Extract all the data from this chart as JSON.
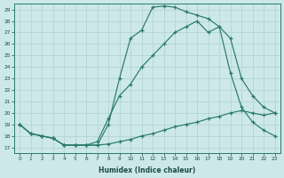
{
  "xlabel": "Humidex (Indice chaleur)",
  "bg_color": "#cce8e8",
  "line_color": "#2a7a6a",
  "grid_color": "#b0d0d0",
  "xlim": [
    -0.5,
    23.5
  ],
  "ylim": [
    16.5,
    29.5
  ],
  "xticks": [
    0,
    1,
    2,
    3,
    4,
    5,
    6,
    7,
    8,
    9,
    10,
    11,
    12,
    13,
    14,
    15,
    16,
    17,
    18,
    19,
    20,
    21,
    22,
    23
  ],
  "yticks": [
    17,
    18,
    19,
    20,
    21,
    22,
    23,
    24,
    25,
    26,
    27,
    28,
    29
  ],
  "c1x": [
    0,
    1,
    2,
    3,
    4,
    5,
    6,
    7,
    8,
    9,
    10,
    11,
    12,
    13,
    14,
    15,
    16,
    17,
    18,
    19,
    20,
    21,
    22,
    23
  ],
  "c1y": [
    19,
    18.2,
    18.0,
    17.8,
    17.2,
    17.2,
    17.2,
    17.2,
    17.3,
    17.5,
    17.7,
    18.0,
    18.2,
    18.5,
    18.8,
    19.0,
    19.2,
    19.5,
    19.7,
    20.0,
    20.2,
    20.0,
    19.8,
    20.0
  ],
  "c2x": [
    0,
    1,
    2,
    3,
    4,
    5,
    6,
    7,
    8,
    9,
    10,
    11,
    12,
    13,
    14,
    15,
    16,
    17,
    18,
    19,
    20,
    21,
    22,
    23
  ],
  "c2y": [
    19,
    18.2,
    18.0,
    17.8,
    17.2,
    17.2,
    17.2,
    17.2,
    19.0,
    23.0,
    26.5,
    27.2,
    29.2,
    29.3,
    29.2,
    28.8,
    28.5,
    28.2,
    27.5,
    23.5,
    20.5,
    19.2,
    18.5,
    18.0
  ],
  "c3x": [
    0,
    1,
    2,
    3,
    4,
    5,
    6,
    7,
    8,
    9,
    10,
    11,
    12,
    13,
    14,
    15,
    16,
    17,
    18,
    19,
    20,
    21,
    22,
    23
  ],
  "c3y": [
    19,
    18.2,
    18.0,
    17.8,
    17.2,
    17.2,
    17.2,
    17.5,
    19.5,
    21.5,
    22.5,
    24.0,
    25.0,
    26.0,
    27.0,
    27.5,
    28.0,
    27.0,
    27.5,
    26.5,
    23.0,
    21.5,
    20.5,
    20.0
  ]
}
